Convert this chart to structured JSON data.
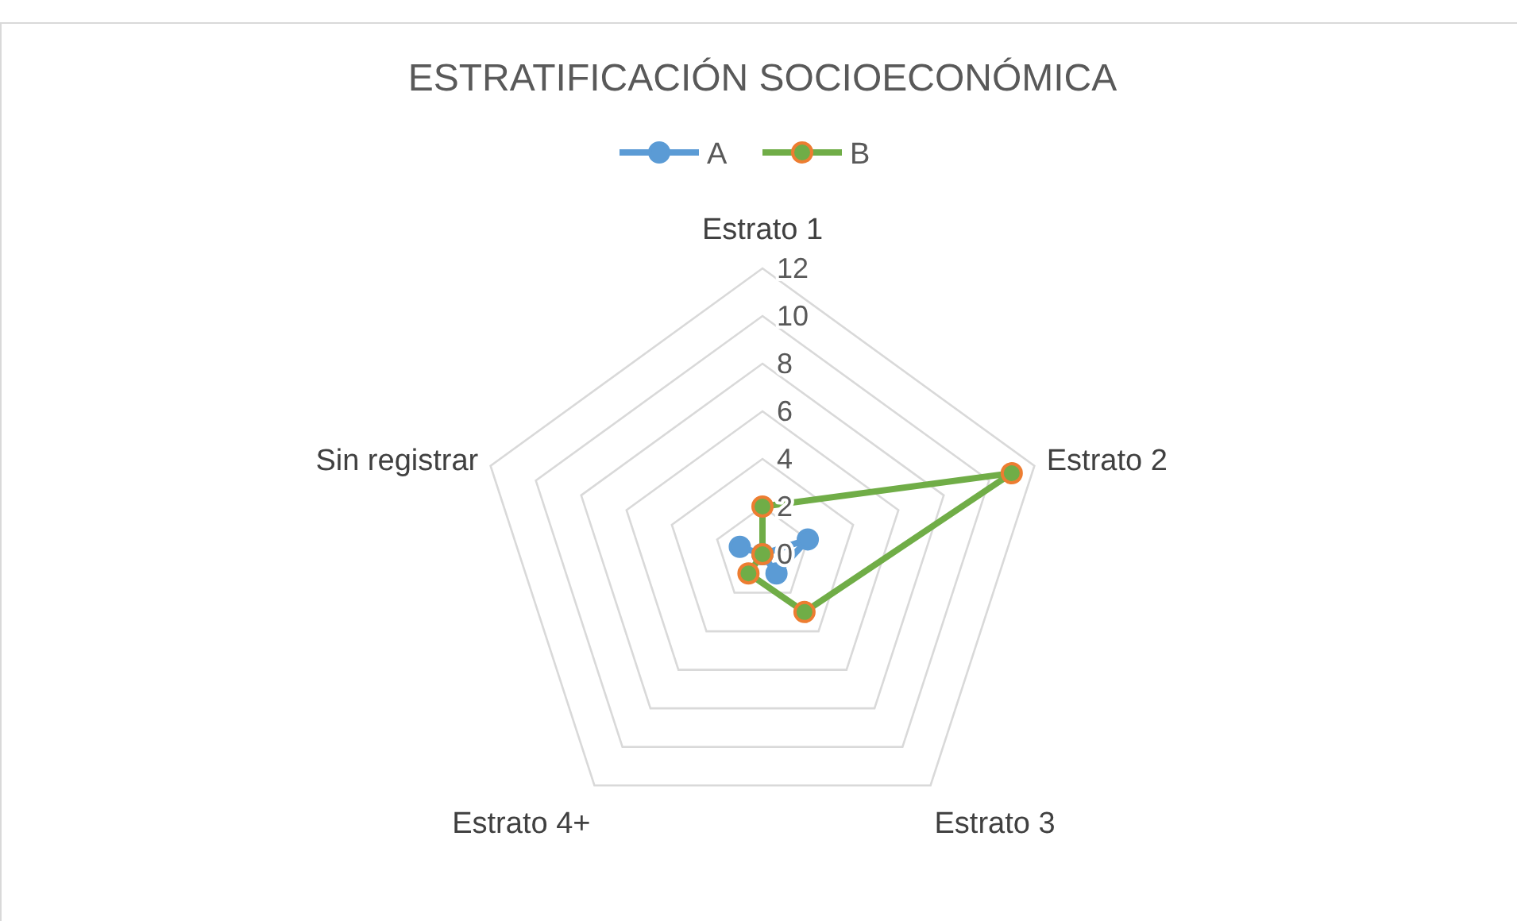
{
  "chart_data": {
    "type": "radar",
    "title": "ESTRATIFICACIÓN SOCIOECONÓMICA",
    "categories": [
      "Estrato 1",
      "Estrato 2",
      "Estrato 3",
      "Estrato 4+",
      "Sin registrar"
    ],
    "series": [
      {
        "name": "A",
        "color": "#5b9bd5",
        "values": [
          0,
          2,
          1,
          0,
          1
        ]
      },
      {
        "name": "B",
        "color": "#70ad47",
        "values": [
          2,
          11,
          3,
          1,
          0
        ]
      }
    ],
    "ylim": [
      0,
      12
    ],
    "yticks": [
      0,
      2,
      4,
      6,
      8,
      10,
      12
    ],
    "grid": true,
    "legend": "top",
    "marker": "circle"
  }
}
